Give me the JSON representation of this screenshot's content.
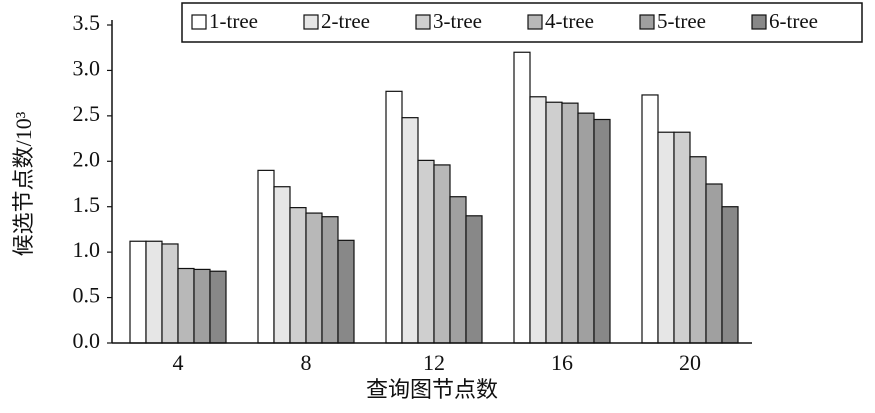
{
  "chart_data": {
    "type": "bar",
    "xlabel": "查询图节点数",
    "ylabel": "候选节点数/10³",
    "categories": [
      "4",
      "8",
      "12",
      "16",
      "20"
    ],
    "series": [
      {
        "name": "1-tree",
        "color": "#ffffff",
        "values": [
          1.12,
          1.9,
          2.77,
          3.2,
          2.73
        ]
      },
      {
        "name": "2-tree",
        "color": "#e6e6e6",
        "values": [
          1.12,
          1.72,
          2.48,
          2.71,
          2.32
        ]
      },
      {
        "name": "3-tree",
        "color": "#cfcfcf",
        "values": [
          1.09,
          1.49,
          2.01,
          2.65,
          2.32
        ]
      },
      {
        "name": "4-tree",
        "color": "#b8b8b8",
        "values": [
          0.82,
          1.43,
          1.96,
          2.64,
          2.05
        ]
      },
      {
        "name": "5-tree",
        "color": "#a0a0a0",
        "values": [
          0.81,
          1.39,
          1.61,
          2.53,
          1.75
        ]
      },
      {
        "name": "6-tree",
        "color": "#888888",
        "values": [
          0.79,
          1.13,
          1.4,
          2.46,
          1.5
        ]
      }
    ],
    "ylim": [
      0,
      3.5
    ],
    "yticks": [
      {
        "value": 0,
        "label": "0.0"
      },
      0.5,
      {
        "value": 1,
        "label": "1.0"
      },
      1.5,
      {
        "value": 2,
        "label": "2.0"
      },
      2.5,
      {
        "value": 3,
        "label": "3.0"
      },
      3.5
    ],
    "legend": "top-right"
  }
}
